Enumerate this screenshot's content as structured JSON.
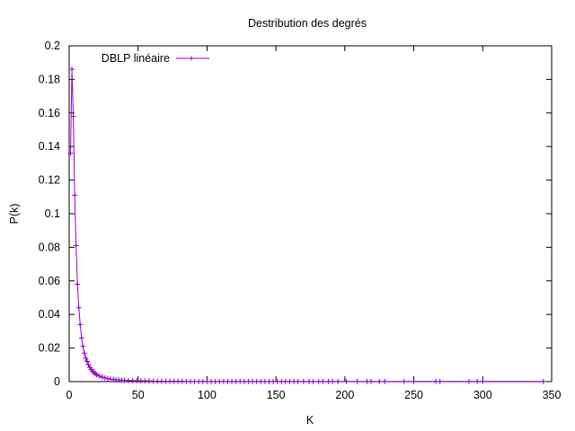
{
  "chart_data": {
    "type": "line",
    "title": "Destribution des degrés",
    "xlabel": "K",
    "ylabel": "P(k)",
    "xlim": [
      0,
      350
    ],
    "ylim": [
      0,
      0.2
    ],
    "xticks": [
      "0",
      "50",
      "100",
      "150",
      "200",
      "250",
      "300",
      "350"
    ],
    "yticks": [
      "0",
      "0.02",
      "0.04",
      "0.06",
      "0.08",
      "0.1",
      "0.12",
      "0.14",
      "0.16",
      "0.18",
      "0.2"
    ],
    "grid": false,
    "legend_position": "top-left",
    "series": [
      {
        "name": "DBLP linéaire",
        "color": "#9400d3",
        "marker": "plus",
        "x": [
          1,
          2,
          3,
          4,
          5,
          6,
          7,
          8,
          9,
          10,
          11,
          12,
          13,
          14,
          15,
          16,
          17,
          18,
          19,
          20,
          22,
          24,
          26,
          28,
          30,
          32,
          34,
          36,
          38,
          40,
          43,
          46,
          49,
          52,
          55,
          58,
          61,
          64,
          67,
          70,
          73,
          76,
          79,
          82,
          85,
          88,
          91,
          94,
          97,
          100,
          103,
          106,
          109,
          112,
          115,
          118,
          121,
          124,
          127,
          130,
          133,
          136,
          139,
          142,
          145,
          148,
          151,
          154,
          157,
          160,
          163,
          166,
          170,
          174,
          177,
          181,
          184,
          188,
          191,
          195,
          201,
          209,
          216,
          219,
          225,
          229,
          243,
          250,
          266,
          269,
          290,
          296,
          300,
          344
        ],
        "y": [
          0.136,
          0.186,
          0.158,
          0.111,
          0.081,
          0.058,
          0.044,
          0.034,
          0.026,
          0.021,
          0.017,
          0.014,
          0.012,
          0.01,
          0.0085,
          0.0072,
          0.0062,
          0.0054,
          0.0047,
          0.0041,
          0.0033,
          0.0027,
          0.0022,
          0.0018,
          0.0015,
          0.0013,
          0.0011,
          0.001,
          0.0009,
          0.0008,
          0.0007,
          0.0006,
          0.0005,
          0.0005,
          0.0004,
          0.0004,
          0.0003,
          0.0003,
          0.0003,
          0.0002,
          0.0002,
          0.0002,
          0.0002,
          0.0002,
          0.0001,
          0.0001,
          0.0001,
          0.0001,
          0.0001,
          0.0001,
          0.0001,
          0.0001,
          0.0001,
          0.0001,
          0.0001,
          0.0001,
          0.0001,
          0.0001,
          0.0001,
          0.0001,
          0.0001,
          0.0001,
          0.0001,
          0.0001,
          0.0001,
          0.0001,
          0.0001,
          0.0001,
          0.0001,
          0.0001,
          0.0001,
          0.0001,
          0.0001,
          0.0001,
          0.0001,
          0.0001,
          0.0001,
          0.0001,
          0.0001,
          0.0001,
          0.0001,
          0.0001,
          0.0001,
          0.0001,
          0.0001,
          0.0001,
          0.0001,
          0.0001,
          0.0001,
          0.0001,
          0.0001,
          0.0001,
          0.0001,
          0.0001
        ]
      }
    ]
  }
}
